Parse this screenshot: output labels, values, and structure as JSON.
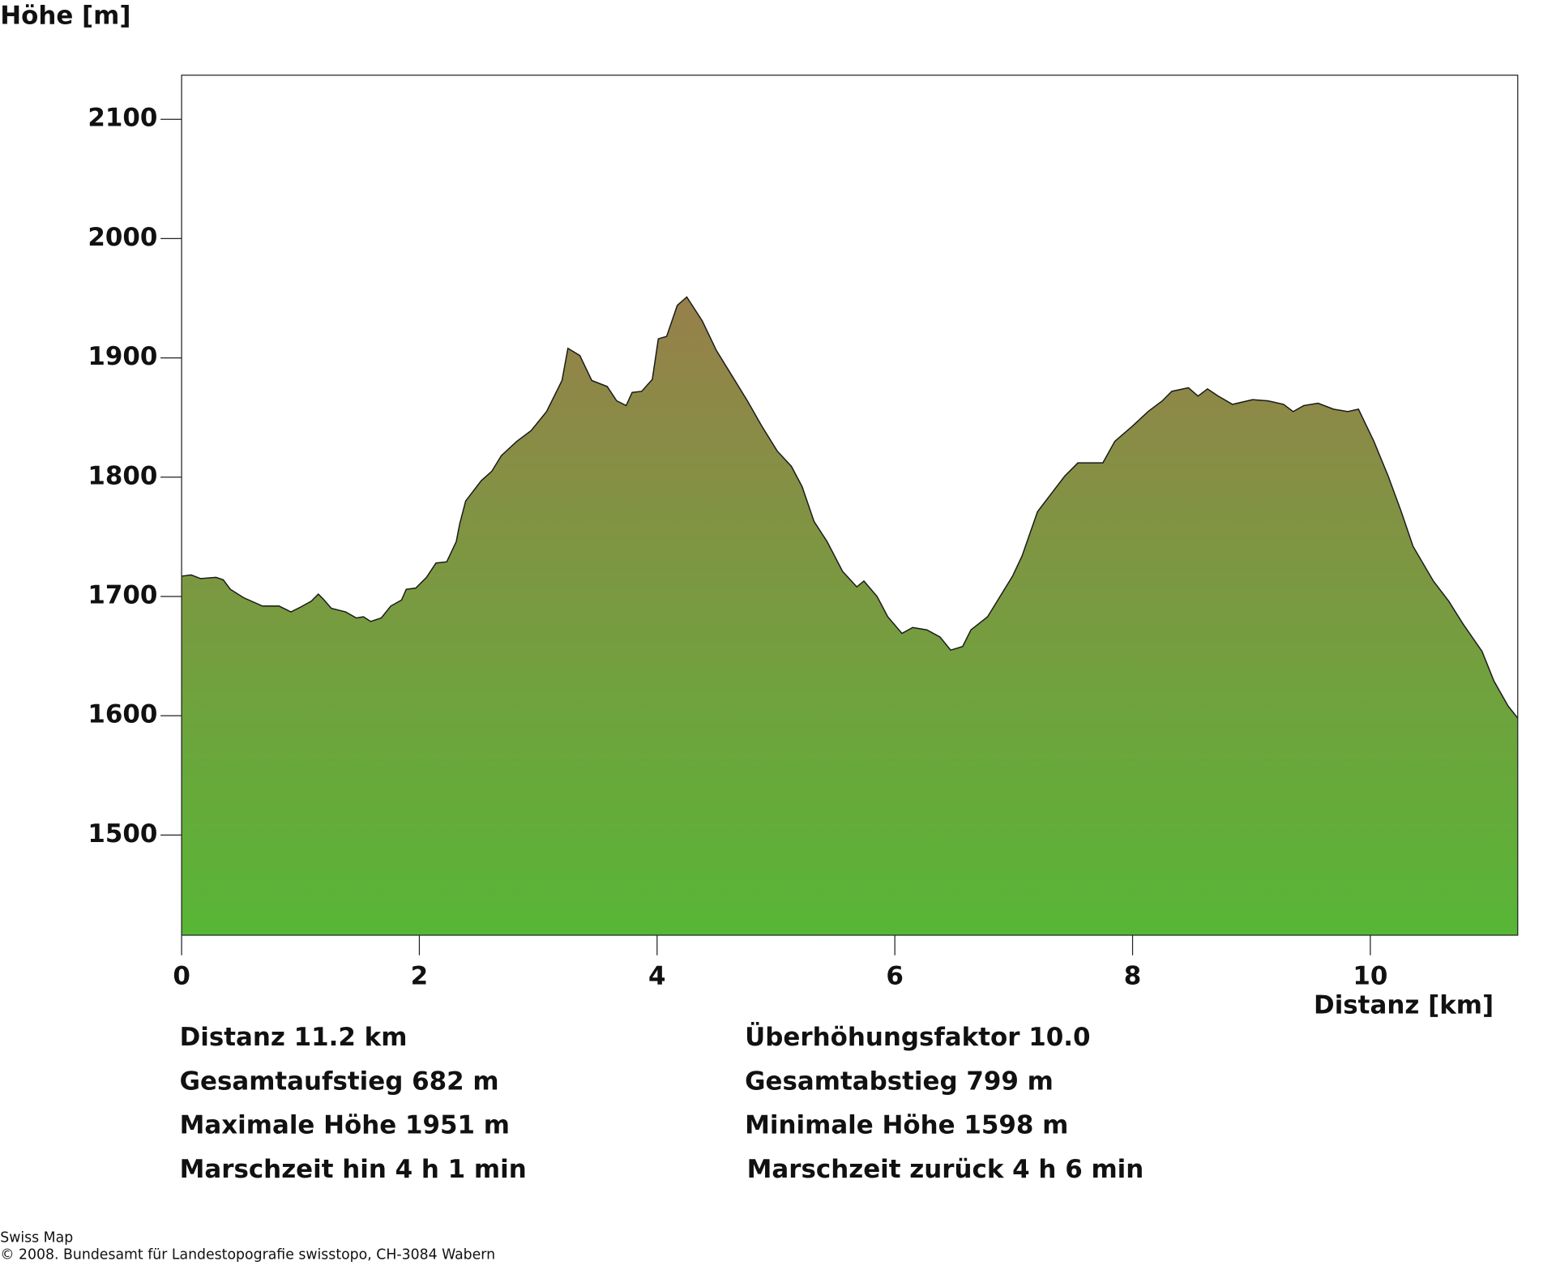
{
  "chart_data": {
    "type": "area",
    "ylabel": "Höhe [m]",
    "xlabel": "Distanz [km]",
    "xlim": [
      0,
      11.24
    ],
    "ylim": [
      1416,
      2137
    ],
    "xticks": [
      0,
      2,
      4,
      6,
      8,
      10
    ],
    "yticks": [
      1500,
      1600,
      1700,
      1800,
      1900,
      2000,
      2100
    ],
    "gradient": [
      "#97804a",
      "#58b636"
    ],
    "x": [
      0,
      0.08,
      0.16,
      0.29,
      0.35,
      0.41,
      0.52,
      0.68,
      0.75,
      0.82,
      0.92,
      1.0,
      1.09,
      1.15,
      1.19,
      1.26,
      1.38,
      1.47,
      1.53,
      1.59,
      1.68,
      1.76,
      1.85,
      1.89,
      1.97,
      2.06,
      2.14,
      2.23,
      2.31,
      2.34,
      2.39,
      2.52,
      2.61,
      2.69,
      2.82,
      2.94,
      3.07,
      3.2,
      3.25,
      3.35,
      3.45,
      3.58,
      3.66,
      3.74,
      3.79,
      3.87,
      3.96,
      4.01,
      4.08,
      4.17,
      4.25,
      4.38,
      4.5,
      4.63,
      4.76,
      4.88,
      5.01,
      5.13,
      5.22,
      5.32,
      5.43,
      5.56,
      5.68,
      5.74,
      5.85,
      5.94,
      6.06,
      6.15,
      6.27,
      6.38,
      6.47,
      6.57,
      6.64,
      6.78,
      6.86,
      6.99,
      7.07,
      7.2,
      7.33,
      7.43,
      7.54,
      7.66,
      7.75,
      7.85,
      8.0,
      8.13,
      8.25,
      8.33,
      8.47,
      8.55,
      8.63,
      8.72,
      8.84,
      9.01,
      9.14,
      9.27,
      9.35,
      9.44,
      9.56,
      9.69,
      9.81,
      9.9,
      10.03,
      10.15,
      10.26,
      10.36,
      10.53,
      10.66,
      10.78,
      10.94,
      11.04,
      11.16,
      11.24
    ],
    "values": [
      1717,
      1718,
      1715,
      1716,
      1714,
      1706,
      1699,
      1692,
      1692,
      1692,
      1687,
      1691,
      1696,
      1702,
      1698,
      1690,
      1687,
      1682,
      1683,
      1679,
      1682,
      1692,
      1697,
      1706,
      1707,
      1716,
      1728,
      1729,
      1746,
      1761,
      1780,
      1797,
      1805,
      1818,
      1830,
      1839,
      1855,
      1881,
      1908,
      1902,
      1881,
      1876,
      1864,
      1860,
      1871,
      1872,
      1882,
      1916,
      1918,
      1944,
      1951,
      1931,
      1906,
      1885,
      1864,
      1843,
      1822,
      1809,
      1792,
      1763,
      1746,
      1721,
      1708,
      1713,
      1700,
      1683,
      1669,
      1674,
      1672,
      1666,
      1655,
      1658,
      1672,
      1683,
      1696,
      1717,
      1734,
      1771,
      1788,
      1801,
      1812,
      1812,
      1812,
      1830,
      1843,
      1855,
      1864,
      1872,
      1875,
      1868,
      1874,
      1868,
      1861,
      1865,
      1864,
      1861,
      1855,
      1860,
      1862,
      1857,
      1855,
      1857,
      1830,
      1801,
      1771,
      1742,
      1713,
      1696,
      1677,
      1654,
      1629,
      1608,
      1598
    ]
  },
  "summary": [
    [
      "Distanz 11.2 km",
      "Überhöhungsfaktor 10.0"
    ],
    [
      "Gesamtaufstieg  682 m",
      "Gesamtabstieg  799 m"
    ],
    [
      "Maximale Höhe  1951 m",
      "Minimale Höhe  1598 m"
    ],
    [
      "Marschzeit hin  4 h 1 min",
      "Marschzeit zurück  4 h 6 min"
    ]
  ],
  "footer": [
    "Swiss Map",
    "© 2008. Bundesamt für Landestopografie swisstopo, CH-3084 Wabern"
  ]
}
